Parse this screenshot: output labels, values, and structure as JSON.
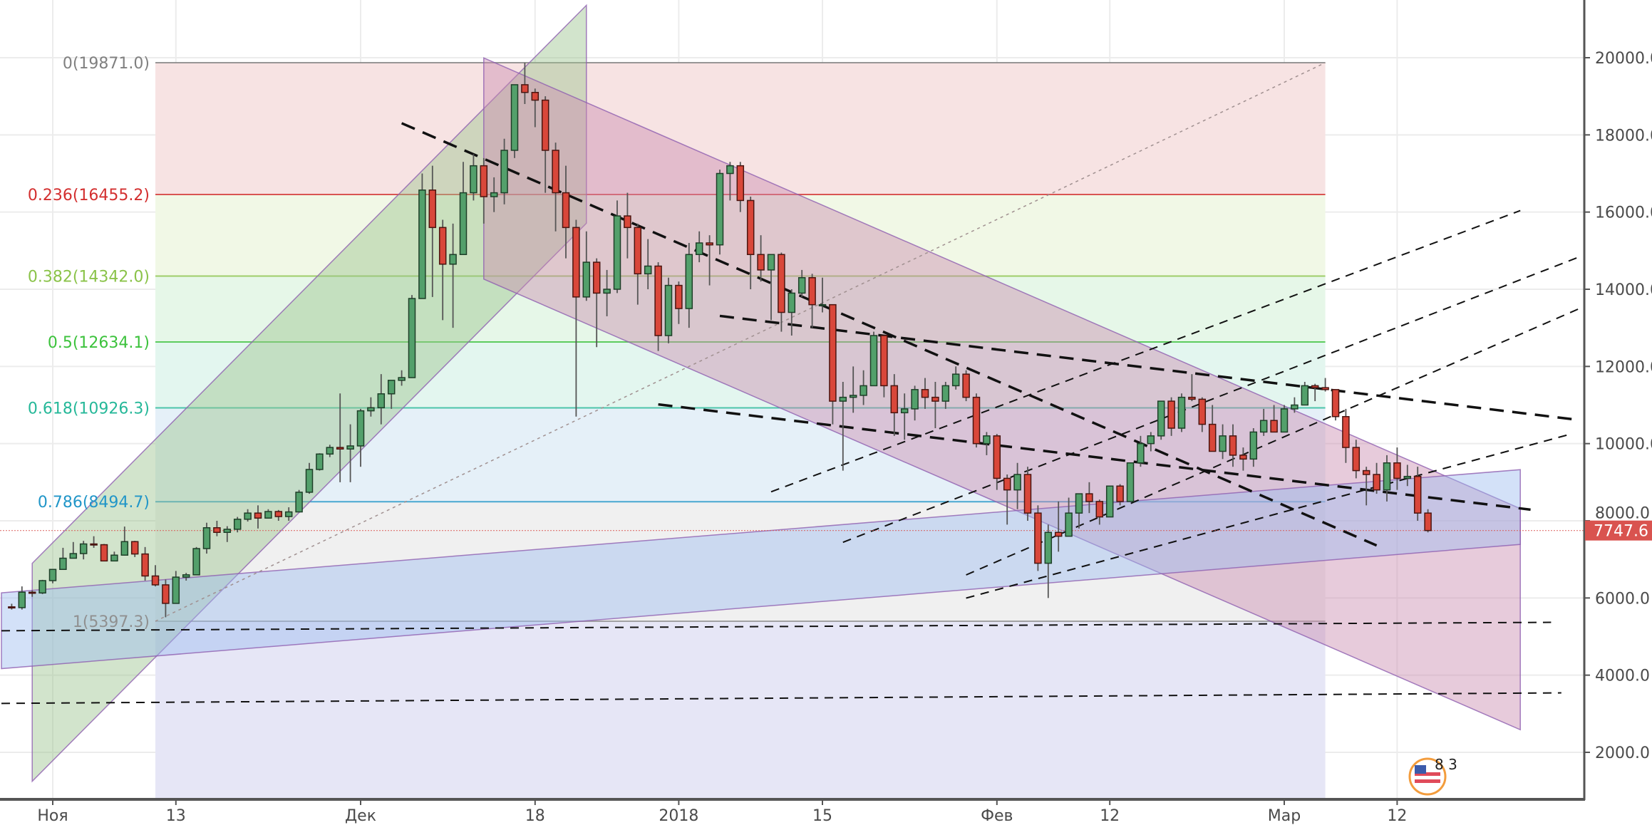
{
  "chart_data": {
    "type": "candlestick",
    "title": "",
    "ylim": [
      800,
      21500
    ],
    "y_ticks": [
      "2000.0",
      "4000.0",
      "6000.0",
      "8000.0",
      "10000.0",
      "12000.0",
      "14000.0",
      "16000.0",
      "18000.0",
      "20000.0"
    ],
    "x_ticks": [
      {
        "label": "Ноя",
        "date": "2017-11-01"
      },
      {
        "label": "13",
        "date": "2017-11-13"
      },
      {
        "label": "Дек",
        "date": "2017-12-01"
      },
      {
        "label": "18",
        "date": "2017-12-18"
      },
      {
        "label": "2018",
        "date": "2018-01-01"
      },
      {
        "label": "15",
        "date": "2018-01-15"
      },
      {
        "label": "Фев",
        "date": "2018-02-01"
      },
      {
        "label": "12",
        "date": "2018-02-12"
      },
      {
        "label": "Мар",
        "date": "2018-03-01"
      },
      {
        "label": "12",
        "date": "2018-03-12"
      }
    ],
    "grid": true,
    "last_price": "7747.6",
    "colors": {
      "up": "#53a06b",
      "up_border": "#1e3f28",
      "down": "#d9473a",
      "down_border": "#4a1510",
      "wick": "#555555",
      "last_price": "#d9534f",
      "axis": "#555555",
      "grid": "#ececec"
    },
    "start_date": "2017-10-28",
    "ohlc": [
      [
        5770,
        5850,
        5700,
        5750
      ],
      [
        5750,
        6300,
        5700,
        6150
      ],
      [
        6150,
        6200,
        6030,
        6130
      ],
      [
        6130,
        6470,
        6100,
        6450
      ],
      [
        6450,
        6750,
        6380,
        6740
      ],
      [
        6740,
        7300,
        6740,
        7030
      ],
      [
        7030,
        7450,
        7030,
        7150
      ],
      [
        7150,
        7480,
        7000,
        7400
      ],
      [
        7400,
        7600,
        7300,
        7380
      ],
      [
        7380,
        7400,
        6950,
        6960
      ],
      [
        6960,
        7200,
        6950,
        7110
      ],
      [
        7110,
        7850,
        7100,
        7460
      ],
      [
        7460,
        7480,
        7060,
        7140
      ],
      [
        7140,
        7320,
        6450,
        6570
      ],
      [
        6570,
        6850,
        6300,
        6340
      ],
      [
        6340,
        6480,
        5500,
        5860
      ],
      [
        5860,
        6700,
        5850,
        6540
      ],
      [
        6540,
        6650,
        6450,
        6600
      ],
      [
        6600,
        7320,
        6600,
        7280
      ],
      [
        7280,
        7950,
        7150,
        7820
      ],
      [
        7820,
        8000,
        7600,
        7700
      ],
      [
        7700,
        7860,
        7450,
        7780
      ],
      [
        7780,
        8100,
        7700,
        8040
      ],
      [
        8040,
        8300,
        7980,
        8200
      ],
      [
        8200,
        8400,
        7800,
        8070
      ],
      [
        8070,
        8300,
        8060,
        8240
      ],
      [
        8240,
        8280,
        8000,
        8110
      ],
      [
        8110,
        8350,
        8000,
        8230
      ],
      [
        8230,
        8800,
        8230,
        8740
      ],
      [
        8740,
        9500,
        8700,
        9330
      ],
      [
        9330,
        9750,
        9300,
        9730
      ],
      [
        9730,
        9970,
        9650,
        9900
      ],
      [
        9900,
        11300,
        9000,
        9860
      ],
      [
        9860,
        10500,
        9000,
        9940
      ],
      [
        9940,
        10900,
        9400,
        10850
      ],
      [
        10850,
        11200,
        10700,
        10930
      ],
      [
        10930,
        11800,
        10500,
        11290
      ],
      [
        11290,
        11600,
        10900,
        11640
      ],
      [
        11640,
        11900,
        11500,
        11710
      ],
      [
        11710,
        13850,
        11700,
        13760
      ],
      [
        13760,
        17000,
        13750,
        16570
      ],
      [
        16570,
        17200,
        13800,
        15600
      ],
      [
        15600,
        15800,
        13200,
        14650
      ],
      [
        14650,
        15700,
        13000,
        14900
      ],
      [
        14900,
        17300,
        14900,
        16500
      ],
      [
        16500,
        17500,
        16300,
        17200
      ],
      [
        17200,
        17400,
        15700,
        16400
      ],
      [
        16400,
        16900,
        16000,
        16500
      ],
      [
        16500,
        17900,
        16200,
        17600
      ],
      [
        17600,
        19300,
        17400,
        19300
      ],
      [
        19300,
        19871,
        18800,
        19100
      ],
      [
        19100,
        19200,
        18200,
        18900
      ],
      [
        18900,
        19000,
        16500,
        17600
      ],
      [
        17600,
        17800,
        15500,
        16500
      ],
      [
        16500,
        17200,
        14800,
        15600
      ],
      [
        15600,
        15800,
        10700,
        13800
      ],
      [
        13800,
        15500,
        13700,
        14700
      ],
      [
        14700,
        14800,
        12500,
        13900
      ],
      [
        13900,
        14500,
        13300,
        14000
      ],
      [
        14000,
        16300,
        13900,
        15900
      ],
      [
        15900,
        16500,
        14800,
        15600
      ],
      [
        15600,
        15700,
        13600,
        14400
      ],
      [
        14400,
        15300,
        14000,
        14600
      ],
      [
        14600,
        14700,
        12400,
        12800
      ],
      [
        12800,
        14300,
        12600,
        14100
      ],
      [
        14100,
        14200,
        13100,
        13500
      ],
      [
        13500,
        15200,
        13000,
        14900
      ],
      [
        14900,
        15500,
        14700,
        15200
      ],
      [
        15200,
        15400,
        14100,
        15150
      ],
      [
        15150,
        17100,
        14900,
        17000
      ],
      [
        17000,
        17300,
        16300,
        17200
      ],
      [
        17200,
        17300,
        16000,
        16300
      ],
      [
        16300,
        16400,
        14000,
        14900
      ],
      [
        14900,
        15400,
        14200,
        14500
      ],
      [
        14500,
        14900,
        13200,
        14900
      ],
      [
        14900,
        14950,
        12900,
        13400
      ],
      [
        13400,
        14000,
        12800,
        13900
      ],
      [
        13900,
        14500,
        13800,
        14300
      ],
      [
        14300,
        14400,
        13000,
        13600
      ],
      [
        13600,
        14300,
        13400,
        13600
      ],
      [
        13600,
        13600,
        10500,
        11100
      ],
      [
        11100,
        11600,
        9300,
        11200
      ],
      [
        11200,
        12000,
        10800,
        11250
      ],
      [
        11250,
        11900,
        11000,
        11500
      ],
      [
        11500,
        12900,
        11500,
        12800
      ],
      [
        12800,
        12800,
        11200,
        11500
      ],
      [
        11500,
        11800,
        10200,
        10800
      ],
      [
        10800,
        11300,
        10100,
        10900
      ],
      [
        10900,
        11500,
        10600,
        11400
      ],
      [
        11400,
        11700,
        10900,
        11200
      ],
      [
        11200,
        11600,
        10400,
        11100
      ],
      [
        11100,
        11600,
        10900,
        11500
      ],
      [
        11500,
        12000,
        11400,
        11800
      ],
      [
        11800,
        11900,
        11100,
        11200
      ],
      [
        11200,
        11300,
        9900,
        10000
      ],
      [
        10000,
        10300,
        9700,
        10200
      ],
      [
        10200,
        10250,
        8800,
        9100
      ],
      [
        9100,
        9200,
        7900,
        8800
      ],
      [
        8800,
        9500,
        8300,
        9200
      ],
      [
        9200,
        9400,
        8000,
        8200
      ],
      [
        8200,
        8400,
        6700,
        6900
      ],
      [
        6900,
        7900,
        6000,
        7700
      ],
      [
        7700,
        8500,
        7200,
        7600
      ],
      [
        7600,
        8600,
        7600,
        8200
      ],
      [
        8200,
        8700,
        7800,
        8700
      ],
      [
        8700,
        9000,
        8200,
        8500
      ],
      [
        8500,
        8550,
        7900,
        8100
      ],
      [
        8100,
        8900,
        8100,
        8900
      ],
      [
        8900,
        8950,
        8400,
        8500
      ],
      [
        8500,
        9500,
        8500,
        9500
      ],
      [
        9500,
        10200,
        9400,
        10000
      ],
      [
        10000,
        10300,
        9800,
        10200
      ],
      [
        10200,
        11100,
        10100,
        11100
      ],
      [
        11100,
        11200,
        10200,
        10400
      ],
      [
        10400,
        11300,
        10300,
        11200
      ],
      [
        11200,
        11800,
        11100,
        11150
      ],
      [
        11150,
        11200,
        10300,
        10500
      ],
      [
        10500,
        11000,
        9800,
        9800
      ],
      [
        9800,
        10500,
        9600,
        10200
      ],
      [
        10200,
        10500,
        9400,
        9700
      ],
      [
        9700,
        9900,
        9300,
        9600
      ],
      [
        9600,
        10400,
        9400,
        10300
      ],
      [
        10300,
        10900,
        10200,
        10600
      ],
      [
        10600,
        11000,
        10300,
        10300
      ],
      [
        10300,
        11000,
        10300,
        10900
      ],
      [
        10900,
        11200,
        10800,
        11000
      ],
      [
        11000,
        11600,
        11000,
        11500
      ],
      [
        11500,
        11550,
        11100,
        11450
      ],
      [
        11450,
        11700,
        11350,
        11400
      ],
      [
        11400,
        11400,
        10600,
        10700
      ],
      [
        10700,
        10900,
        9500,
        9900
      ],
      [
        9900,
        10100,
        9100,
        9300
      ],
      [
        9300,
        9400,
        8400,
        9200
      ],
      [
        9200,
        9500,
        8700,
        8800
      ],
      [
        8800,
        9700,
        8500,
        9500
      ],
      [
        9500,
        9900,
        8800,
        9100
      ],
      [
        9100,
        9450,
        8900,
        9150
      ],
      [
        9150,
        9400,
        8000,
        8200
      ],
      [
        8200,
        8300,
        7700,
        7747.6
      ]
    ],
    "fib_retracement": {
      "start_date": "2017-11-11",
      "end_date": "2018-03-05",
      "levels": [
        {
          "ratio": "0",
          "price": 19871.0,
          "label": "0(19871.0)",
          "color": "#808080",
          "fill": "#f7e3e3"
        },
        {
          "ratio": "0.236",
          "price": 16455.2,
          "label": "0.236(16455.2)",
          "color": "#d32f2f",
          "fill": "#f1f8e6"
        },
        {
          "ratio": "0.382",
          "price": 14342.0,
          "label": "0.382(14342.0)",
          "color": "#8bc34a",
          "fill": "#e6f7e8"
        },
        {
          "ratio": "0.5",
          "price": 12634.1,
          "label": "0.5(12634.1)",
          "color": "#3cc23c",
          "fill": "#e3f6ef"
        },
        {
          "ratio": "0.618",
          "price": 10926.3,
          "label": "0.618(10926.3)",
          "color": "#26b899",
          "fill": "#e5f0f8"
        },
        {
          "ratio": "0.786",
          "price": 8494.7,
          "label": "0.786(8494.7)",
          "color": "#2196c8",
          "fill": "#f0f0f0"
        },
        {
          "ratio": "1",
          "price": 5397.3,
          "label": "1(5397.3)",
          "color": "#909090",
          "fill": "#e6e6f6"
        }
      ]
    },
    "channels": [
      {
        "kind": "ascending",
        "color": "#9bc48f",
        "start_date": "2017-10-30",
        "end_date": "2017-12-23",
        "upper": [
          6897,
          21359
        ],
        "lower": [
          1249,
          15710
        ]
      },
      {
        "kind": "descending",
        "color": "#c98bb0",
        "start_date": "2017-12-13",
        "end_date": "2018-03-24",
        "upper": [
          19994,
          8316
        ],
        "lower": [
          14264,
          2586
        ]
      },
      {
        "kind": "ascending",
        "color": "#9ebcef",
        "start_date": "2017-10-27",
        "end_date": "2018-03-24",
        "upper": [
          6133,
          9325
        ],
        "lower": [
          4169,
          7388
        ]
      }
    ],
    "trend_lines": [
      {
        "style": "dashed",
        "weight": "thin",
        "from": [
          "2017-10-27",
          5151
        ],
        "to": [
          "2018-03-27",
          5369
        ]
      },
      {
        "style": "dashed",
        "weight": "thin",
        "from": [
          "2017-10-27",
          3268
        ],
        "to": [
          "2018-03-28",
          3541
        ]
      },
      {
        "style": "dashed",
        "weight": "thick",
        "from": [
          "2017-12-05",
          18303
        ],
        "to": [
          "2018-03-10",
          7361
        ]
      },
      {
        "style": "dashed",
        "weight": "thick",
        "from": [
          "2018-01-05",
          13309
        ],
        "to": [
          "2018-03-29",
          10635
        ]
      },
      {
        "style": "dashed",
        "weight": "thick",
        "from": [
          "2017-12-30",
          11017
        ],
        "to": [
          "2018-03-25",
          8289
        ]
      },
      {
        "style": "dashed",
        "weight": "thin",
        "from": [
          "2018-01-10",
          8752
        ],
        "to": [
          "2018-03-24",
          16038
        ]
      },
      {
        "style": "dashed",
        "weight": "thin",
        "from": [
          "2018-01-17",
          7443
        ],
        "to": [
          "2018-03-30",
          14864
        ]
      },
      {
        "style": "dashed",
        "weight": "thin",
        "from": [
          "2018-01-29",
          6597
        ],
        "to": [
          "2018-03-30",
          13527
        ]
      },
      {
        "style": "dashed",
        "weight": "thin",
        "from": [
          "2018-01-29",
          5997
        ],
        "to": [
          "2018-03-29",
          10253
        ]
      },
      {
        "style": "dotted",
        "weight": "thin",
        "from": [
          "2017-11-11",
          5397.3
        ],
        "to": [
          "2018-03-05",
          19871
        ]
      }
    ]
  },
  "logo": {
    "text": "8 3",
    "icon": "us-flag-circle-icon"
  }
}
